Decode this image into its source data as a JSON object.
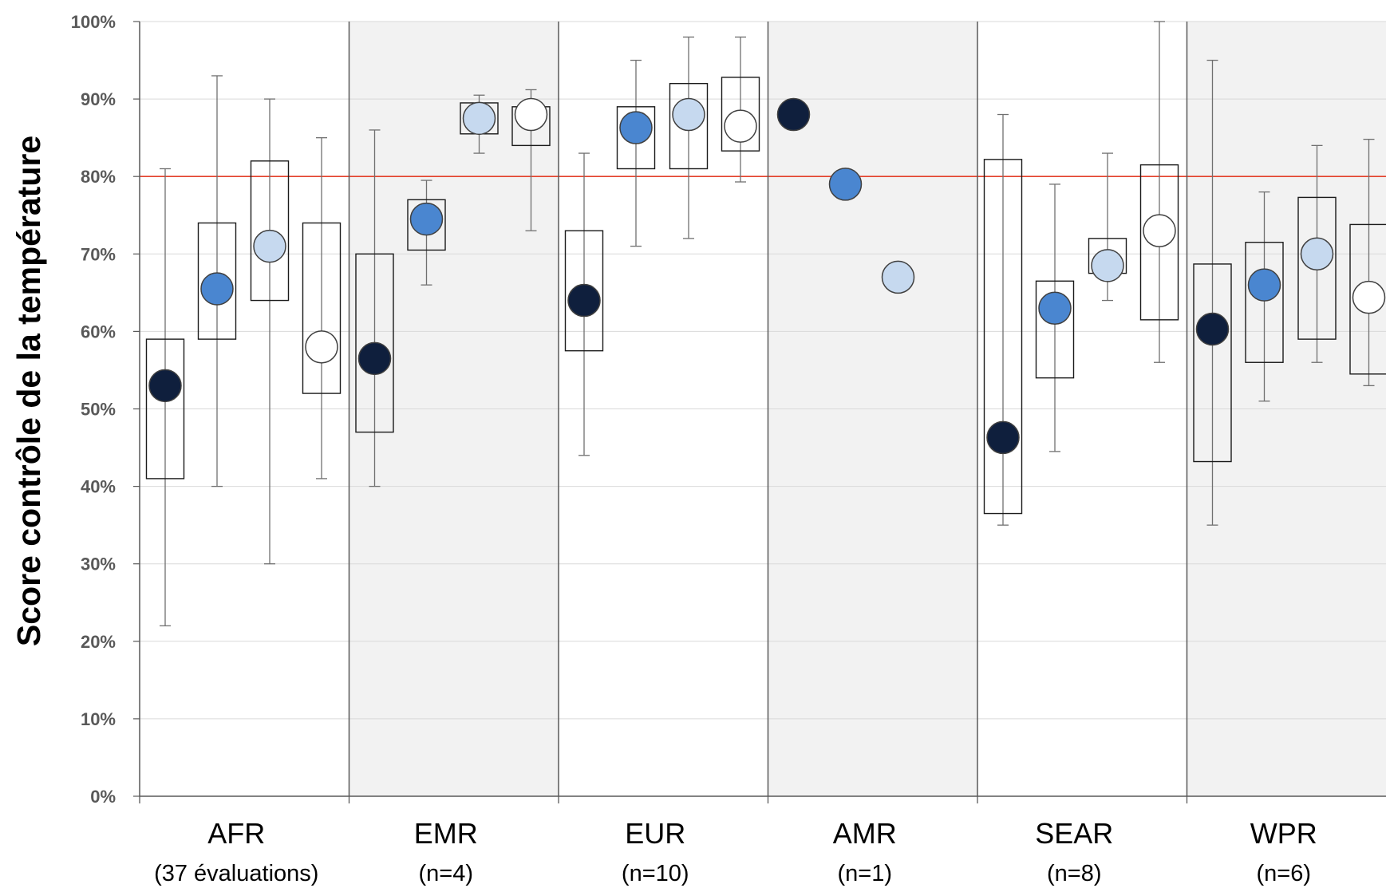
{
  "chart_data": {
    "type": "box",
    "ylabel": "Score contrôle de la température",
    "ylim": [
      0,
      100
    ],
    "y_ticks": [
      "0%",
      "10%",
      "20%",
      "30%",
      "40%",
      "50%",
      "60%",
      "70%",
      "80%",
      "90%",
      "100%"
    ],
    "threshold": 80,
    "grid": true,
    "colors": {
      "series": [
        "#0f1f3d",
        "#4a86d0",
        "#c6d9ef",
        "#ffffff"
      ],
      "threshold_line": "#e3402a",
      "shaded_band": "#f2f2f2"
    },
    "regions": [
      {
        "name": "AFR",
        "sub": "(37 évaluations)",
        "shaded": false,
        "items": [
          {
            "mean": 53,
            "box": [
              41,
              59
            ],
            "whisker": [
              22,
              81
            ]
          },
          {
            "mean": 65.5,
            "box": [
              59,
              74
            ],
            "whisker": [
              40,
              93
            ]
          },
          {
            "mean": 71,
            "box": [
              64,
              82
            ],
            "whisker": [
              30,
              90
            ]
          },
          {
            "mean": 58,
            "box": [
              52,
              74
            ],
            "whisker": [
              41,
              85
            ]
          }
        ]
      },
      {
        "name": "EMR",
        "sub": "(n=4)",
        "shaded": true,
        "items": [
          {
            "mean": 56.5,
            "box": [
              47,
              70
            ],
            "whisker": [
              40,
              86
            ]
          },
          {
            "mean": 74.5,
            "box": [
              70.5,
              77
            ],
            "whisker": [
              66,
              79.5
            ]
          },
          {
            "mean": 87.5,
            "box": [
              85.5,
              89.5
            ],
            "whisker": [
              83,
              90.5
            ]
          },
          {
            "mean": 88,
            "box": [
              84,
              89
            ],
            "whisker": [
              73,
              91.2
            ]
          }
        ]
      },
      {
        "name": "EUR",
        "sub": "(n=10)",
        "shaded": false,
        "items": [
          {
            "mean": 64,
            "box": [
              57.5,
              73
            ],
            "whisker": [
              44,
              83
            ]
          },
          {
            "mean": 86.3,
            "box": [
              81,
              89
            ],
            "whisker": [
              71,
              95
            ]
          },
          {
            "mean": 88,
            "box": [
              81,
              92
            ],
            "whisker": [
              72,
              98
            ]
          },
          {
            "mean": 86.5,
            "box": [
              83.3,
              92.8
            ],
            "whisker": [
              79.3,
              98
            ]
          }
        ]
      },
      {
        "name": "AMR",
        "sub": "(n=1)",
        "shaded": true,
        "items": [
          {
            "mean": 88
          },
          {
            "mean": 79
          },
          {
            "mean": 67
          },
          null
        ]
      },
      {
        "name": "SEAR",
        "sub": "(n=8)",
        "shaded": false,
        "items": [
          {
            "mean": 46.3,
            "box": [
              36.5,
              82.2
            ],
            "whisker": [
              35,
              88
            ]
          },
          {
            "mean": 63,
            "box": [
              54,
              66.5
            ],
            "whisker": [
              44.5,
              79
            ]
          },
          {
            "mean": 68.5,
            "box": [
              67.5,
              72
            ],
            "whisker": [
              64,
              83
            ]
          },
          {
            "mean": 73,
            "box": [
              61.5,
              81.5
            ],
            "whisker": [
              56,
              100
            ]
          }
        ]
      },
      {
        "name": "WPR",
        "sub": "(n=6)",
        "shaded": true,
        "items": [
          {
            "mean": 60.3,
            "box": [
              43.2,
              68.7
            ],
            "whisker": [
              35,
              95
            ]
          },
          {
            "mean": 66,
            "box": [
              56,
              71.5
            ],
            "whisker": [
              51,
              78
            ]
          },
          {
            "mean": 70,
            "box": [
              59,
              77.3
            ],
            "whisker": [
              56,
              84
            ]
          },
          {
            "mean": 64.4,
            "box": [
              54.5,
              73.8
            ],
            "whisker": [
              53,
              84.8
            ]
          }
        ]
      }
    ]
  }
}
